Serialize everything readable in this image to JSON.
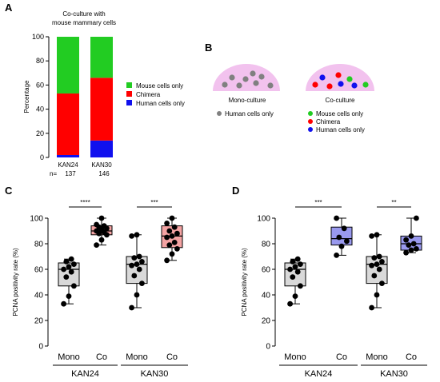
{
  "colors": {
    "mouse": "#22cc22",
    "chimera": "#ff0000",
    "human": "#1010ee",
    "dome": "#f2c2ee",
    "mono_dot": "#808080",
    "mono_box": "#d9d9d9",
    "co_box_c": "#f4a3a3",
    "co_box_d": "#9999ee"
  },
  "panel_letters": {
    "a": "A",
    "b": "B",
    "c": "C",
    "d": "D"
  },
  "panel_a": {
    "title_line1": "Co-culture with",
    "title_line2": "mouse mammary cells",
    "ylabel": "Percentage",
    "yticks": [
      "0",
      "20",
      "40",
      "60",
      "80",
      "100"
    ],
    "n_label": "n=",
    "legend": [
      "Mouse cells only",
      "Chimera",
      "Human cells only"
    ]
  },
  "panel_b": {
    "mono_label": "Mono-culture",
    "co_label": "Co-culture",
    "mono_legend": "Human cells only",
    "co_legend": [
      "Mouse cells only",
      "Chimera",
      "Human cells only"
    ]
  },
  "panel_c": {
    "ylabel": "PCNA positivity rate (%)",
    "yticks": [
      "0",
      "20",
      "40",
      "60",
      "80",
      "100"
    ],
    "xticks": [
      "Mono",
      "Co",
      "Mono",
      "Co"
    ],
    "groups": [
      "KAN24",
      "KAN30"
    ],
    "sig": [
      "****",
      "***"
    ]
  },
  "panel_d": {
    "ylabel": "PCNA positivity rate (%)",
    "yticks": [
      "0",
      "20",
      "40",
      "60",
      "80",
      "100"
    ],
    "xticks": [
      "Mono",
      "Co",
      "Mono",
      "Co"
    ],
    "groups": [
      "KAN24",
      "KAN30"
    ],
    "sig": [
      "***",
      "**"
    ]
  },
  "chart_data": [
    {
      "type": "bar",
      "stacked": true,
      "title": "Co-culture with mouse mammary cells",
      "ylabel": "Percentage",
      "ylim": [
        0,
        100
      ],
      "categories": [
        "KAN24",
        "KAN30"
      ],
      "n": [
        "137",
        "146"
      ],
      "series": [
        {
          "name": "Human cells only",
          "values": [
            2,
            14
          ]
        },
        {
          "name": "Chimera",
          "values": [
            51,
            52
          ]
        },
        {
          "name": "Mouse cells only",
          "values": [
            47,
            34
          ]
        }
      ]
    },
    {
      "type": "box",
      "ylabel": "PCNA positivity rate (%)",
      "ylim": [
        0,
        100
      ],
      "categories": [
        "Mono",
        "Co",
        "Mono",
        "Co"
      ],
      "groups": [
        "KAN24",
        "KAN30"
      ],
      "significance": [
        "****",
        "***"
      ],
      "boxes": [
        {
          "min": 33,
          "q1": 47,
          "median": 60,
          "q3": 65,
          "max": 68,
          "points": [
            33,
            39,
            47,
            54,
            58,
            60,
            62,
            64,
            66,
            68
          ]
        },
        {
          "min": 79,
          "q1": 87,
          "median": 90,
          "q3": 94,
          "max": 100,
          "points": [
            79,
            83,
            87,
            88,
            89,
            90,
            91,
            92,
            93,
            94,
            95,
            100
          ]
        },
        {
          "min": 30,
          "q1": 49,
          "median": 64,
          "q3": 70,
          "max": 87,
          "points": [
            30,
            40,
            49,
            55,
            60,
            63,
            64,
            66,
            69,
            70,
            86,
            87
          ]
        },
        {
          "min": 67,
          "q1": 77,
          "median": 86,
          "q3": 94,
          "max": 100,
          "points": [
            67,
            72,
            76,
            79,
            81,
            85,
            86,
            88,
            90,
            93,
            96,
            100
          ]
        }
      ]
    },
    {
      "type": "box",
      "ylabel": "PCNA positivity rate (%)",
      "ylim": [
        0,
        100
      ],
      "categories": [
        "Mono",
        "Co",
        "Mono",
        "Co"
      ],
      "groups": [
        "KAN24",
        "KAN30"
      ],
      "significance": [
        "***",
        "**"
      ],
      "boxes": [
        {
          "min": 33,
          "q1": 47,
          "median": 60,
          "q3": 65,
          "max": 68,
          "points": [
            33,
            39,
            47,
            54,
            58,
            60,
            62,
            64,
            66,
            68
          ]
        },
        {
          "min": 71,
          "q1": 79,
          "median": 84,
          "q3": 93,
          "max": 100,
          "points": [
            71,
            78,
            82,
            85,
            92,
            100
          ]
        },
        {
          "min": 30,
          "q1": 49,
          "median": 64,
          "q3": 70,
          "max": 87,
          "points": [
            30,
            40,
            49,
            55,
            60,
            63,
            64,
            66,
            69,
            70,
            86,
            87
          ]
        },
        {
          "min": 73,
          "q1": 75,
          "median": 80,
          "q3": 86,
          "max": 100,
          "points": [
            73,
            75,
            76,
            79,
            80,
            83,
            86,
            100
          ]
        }
      ]
    }
  ]
}
